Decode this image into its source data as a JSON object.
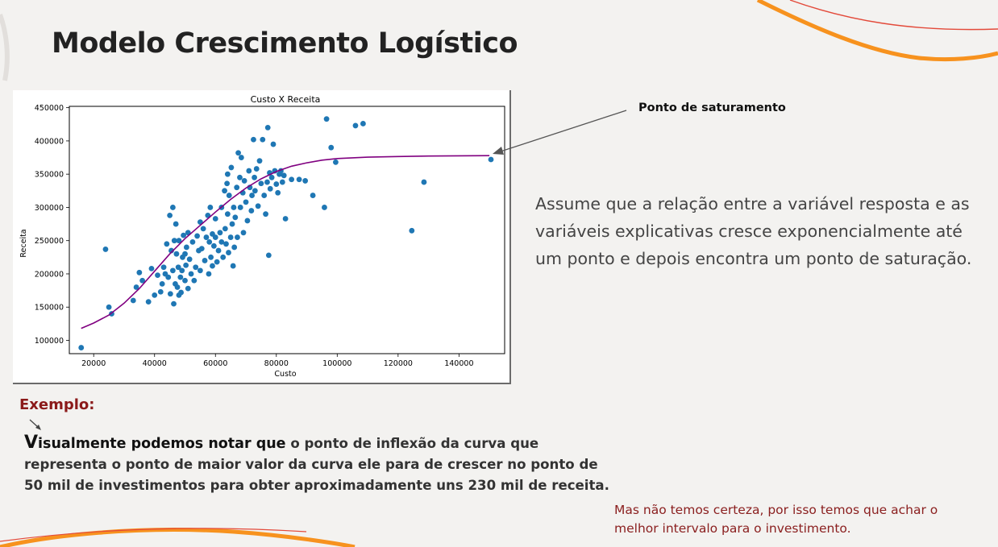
{
  "slide": {
    "title": "Modelo Crescimento Logístico",
    "accent_color": "#f7921e"
  },
  "callout": {
    "label": "Ponto de saturamento"
  },
  "assumption_text": "Assume que a relação entre a variável resposta e as variáveis explicativas cresce exponencialmente até um ponto e depois encontra um ponto de saturação.",
  "example": {
    "label": "Exemplo:",
    "lead_first": "V",
    "lead_rest": "isualmente podemos notar que",
    "body": " o ponto de inflexão da curva que representa o ponto de maior valor da curva ele para de crescer no ponto de 50 mil de investimentos para obter aproximadamente uns 230 mil de receita."
  },
  "note": "Mas não temos certeza, por isso temos que achar o melhor intervalo para o investimento.",
  "chart_data": {
    "type": "scatter",
    "title": "Custo X Receita",
    "xlabel": "Custo",
    "ylabel": "Receita",
    "xlim": [
      12000,
      155000
    ],
    "ylim": [
      80000,
      452000
    ],
    "xticks": [
      20000,
      40000,
      60000,
      80000,
      100000,
      120000,
      140000
    ],
    "yticks": [
      100000,
      150000,
      200000,
      250000,
      300000,
      350000,
      400000,
      450000
    ],
    "grid": false,
    "point_color": "#1f77b4",
    "curve_color": "#800080",
    "series": [
      {
        "type": "scatter",
        "points": [
          [
            15900,
            89000
          ],
          [
            23900,
            237000
          ],
          [
            25000,
            150000
          ],
          [
            25900,
            140000
          ],
          [
            33000,
            160000
          ],
          [
            34000,
            180000
          ],
          [
            35000,
            202000
          ],
          [
            36000,
            190000
          ],
          [
            38000,
            158000
          ],
          [
            39000,
            208000
          ],
          [
            40000,
            168000
          ],
          [
            41000,
            198000
          ],
          [
            42000,
            173000
          ],
          [
            42500,
            185000
          ],
          [
            43000,
            210000
          ],
          [
            43500,
            200000
          ],
          [
            44000,
            245000
          ],
          [
            44500,
            195000
          ],
          [
            45000,
            288000
          ],
          [
            45200,
            170000
          ],
          [
            45500,
            235000
          ],
          [
            46000,
            205000
          ],
          [
            46000,
            300000
          ],
          [
            46300,
            155000
          ],
          [
            46500,
            250000
          ],
          [
            46800,
            185000
          ],
          [
            47000,
            275000
          ],
          [
            47200,
            230000
          ],
          [
            47500,
            180000
          ],
          [
            47800,
            210000
          ],
          [
            48000,
            168000
          ],
          [
            48000,
            250000
          ],
          [
            48500,
            195000
          ],
          [
            48700,
            172000
          ],
          [
            49000,
            205000
          ],
          [
            49200,
            225000
          ],
          [
            49500,
            258000
          ],
          [
            50000,
            190000
          ],
          [
            50000,
            230000
          ],
          [
            50300,
            213000
          ],
          [
            50500,
            240000
          ],
          [
            51000,
            178000
          ],
          [
            51000,
            262000
          ],
          [
            51500,
            222000
          ],
          [
            52000,
            200000
          ],
          [
            52500,
            248000
          ],
          [
            53000,
            190000
          ],
          [
            53500,
            210000
          ],
          [
            54000,
            257000
          ],
          [
            54500,
            235000
          ],
          [
            55000,
            205000
          ],
          [
            55000,
            278000
          ],
          [
            55500,
            238000
          ],
          [
            56000,
            268000
          ],
          [
            56500,
            220000
          ],
          [
            57000,
            255000
          ],
          [
            57500,
            288000
          ],
          [
            57800,
            200000
          ],
          [
            58000,
            248000
          ],
          [
            58300,
            300000
          ],
          [
            58500,
            225000
          ],
          [
            59000,
            212000
          ],
          [
            59000,
            260000
          ],
          [
            59500,
            242000
          ],
          [
            60000,
            255000
          ],
          [
            60000,
            283000
          ],
          [
            60500,
            218000
          ],
          [
            61000,
            235000
          ],
          [
            61500,
            262000
          ],
          [
            62000,
            248000
          ],
          [
            62000,
            300000
          ],
          [
            62500,
            225000
          ],
          [
            63000,
            325000
          ],
          [
            63200,
            268000
          ],
          [
            63500,
            245000
          ],
          [
            63800,
            336000
          ],
          [
            64000,
            290000
          ],
          [
            64000,
            350000
          ],
          [
            64300,
            232000
          ],
          [
            64500,
            318000
          ],
          [
            65000,
            255000
          ],
          [
            65200,
            360000
          ],
          [
            65500,
            275000
          ],
          [
            65800,
            212000
          ],
          [
            66000,
            300000
          ],
          [
            66200,
            240000
          ],
          [
            66500,
            285000
          ],
          [
            67000,
            330000
          ],
          [
            67200,
            255000
          ],
          [
            67500,
            382000
          ],
          [
            68000,
            345000
          ],
          [
            68200,
            300000
          ],
          [
            68500,
            375000
          ],
          [
            69000,
            322000
          ],
          [
            69200,
            262000
          ],
          [
            69500,
            340000
          ],
          [
            70000,
            308000
          ],
          [
            70500,
            280000
          ],
          [
            71000,
            355000
          ],
          [
            71300,
            330000
          ],
          [
            71800,
            295000
          ],
          [
            72000,
            318000
          ],
          [
            72500,
            402000
          ],
          [
            72800,
            345000
          ],
          [
            73000,
            325000
          ],
          [
            73500,
            358000
          ],
          [
            74000,
            302000
          ],
          [
            74500,
            370000
          ],
          [
            75000,
            336000
          ],
          [
            75500,
            402000
          ],
          [
            76000,
            318000
          ],
          [
            76500,
            290000
          ],
          [
            77000,
            338000
          ],
          [
            77200,
            420000
          ],
          [
            77500,
            228000
          ],
          [
            77800,
            352000
          ],
          [
            78000,
            328000
          ],
          [
            78500,
            345000
          ],
          [
            79000,
            395000
          ],
          [
            79500,
            355000
          ],
          [
            80000,
            335000
          ],
          [
            80500,
            322000
          ],
          [
            81000,
            350000
          ],
          [
            81500,
            355000
          ],
          [
            82000,
            338000
          ],
          [
            82500,
            348000
          ],
          [
            83000,
            283000
          ],
          [
            85000,
            342000
          ],
          [
            87500,
            342000
          ],
          [
            89500,
            340000
          ],
          [
            92000,
            318000
          ],
          [
            95800,
            300000
          ],
          [
            96500,
            433000
          ],
          [
            98000,
            390000
          ],
          [
            99500,
            368000
          ],
          [
            106000,
            423000
          ],
          [
            108500,
            426000
          ],
          [
            124500,
            265000
          ],
          [
            128500,
            338000
          ],
          [
            150500,
            372000
          ]
        ]
      },
      {
        "type": "line",
        "name": "",
        "points": [
          [
            15900,
            118000
          ],
          [
            20000,
            126000
          ],
          [
            25000,
            138000
          ],
          [
            30000,
            156000
          ],
          [
            35000,
            178000
          ],
          [
            40000,
            204000
          ],
          [
            45000,
            230000
          ],
          [
            50000,
            253000
          ],
          [
            55000,
            273000
          ],
          [
            60000,
            293000
          ],
          [
            65000,
            312000
          ],
          [
            70000,
            329000
          ],
          [
            75000,
            343000
          ],
          [
            80000,
            354000
          ],
          [
            85000,
            362000
          ],
          [
            90000,
            367000
          ],
          [
            95000,
            371000
          ],
          [
            100000,
            373500
          ],
          [
            110000,
            375500
          ],
          [
            120000,
            376500
          ],
          [
            130000,
            377200
          ],
          [
            140000,
            377600
          ],
          [
            150000,
            377800
          ]
        ]
      }
    ]
  }
}
